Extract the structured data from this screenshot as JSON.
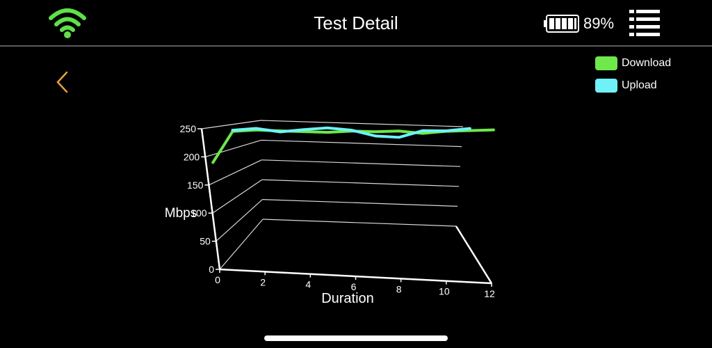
{
  "header": {
    "title": "Test Detail",
    "battery_percent": "89%",
    "battery_level": 0.89
  },
  "colors": {
    "wifi": "#5fe04a",
    "download": "#6ee84a",
    "upload": "#6ef2f8"
  },
  "icons": {
    "wifi": "wifi-icon",
    "battery": "battery-icon",
    "menu": "menu-list-icon",
    "back": "chevron-left-icon"
  },
  "legend": {
    "download_label": "Download",
    "upload_label": "Upload"
  },
  "chart_data": {
    "type": "line",
    "projection": "3d",
    "xlabel": "Duration",
    "ylabel": "Mbps",
    "xlim": [
      0,
      12
    ],
    "ylim": [
      0,
      250
    ],
    "x_ticks": [
      0,
      2,
      4,
      6,
      8,
      10,
      12
    ],
    "y_ticks": [
      0,
      50,
      100,
      150,
      200,
      250
    ],
    "grid": true,
    "legend_position": "top-right",
    "series": [
      {
        "name": "Download",
        "x": [
          0,
          1,
          2,
          3,
          4,
          5,
          6,
          7,
          8,
          9,
          10,
          11,
          12
        ],
        "values": [
          190,
          245,
          247,
          245,
          243,
          241,
          243,
          241,
          242,
          236,
          240,
          241,
          242
        ]
      },
      {
        "name": "Upload",
        "x": [
          1,
          2,
          3,
          4,
          5,
          6,
          7,
          8,
          9,
          10,
          11
        ],
        "values": [
          247,
          250,
          243,
          247,
          250,
          245,
          232,
          228,
          242,
          241,
          246
        ]
      }
    ]
  }
}
